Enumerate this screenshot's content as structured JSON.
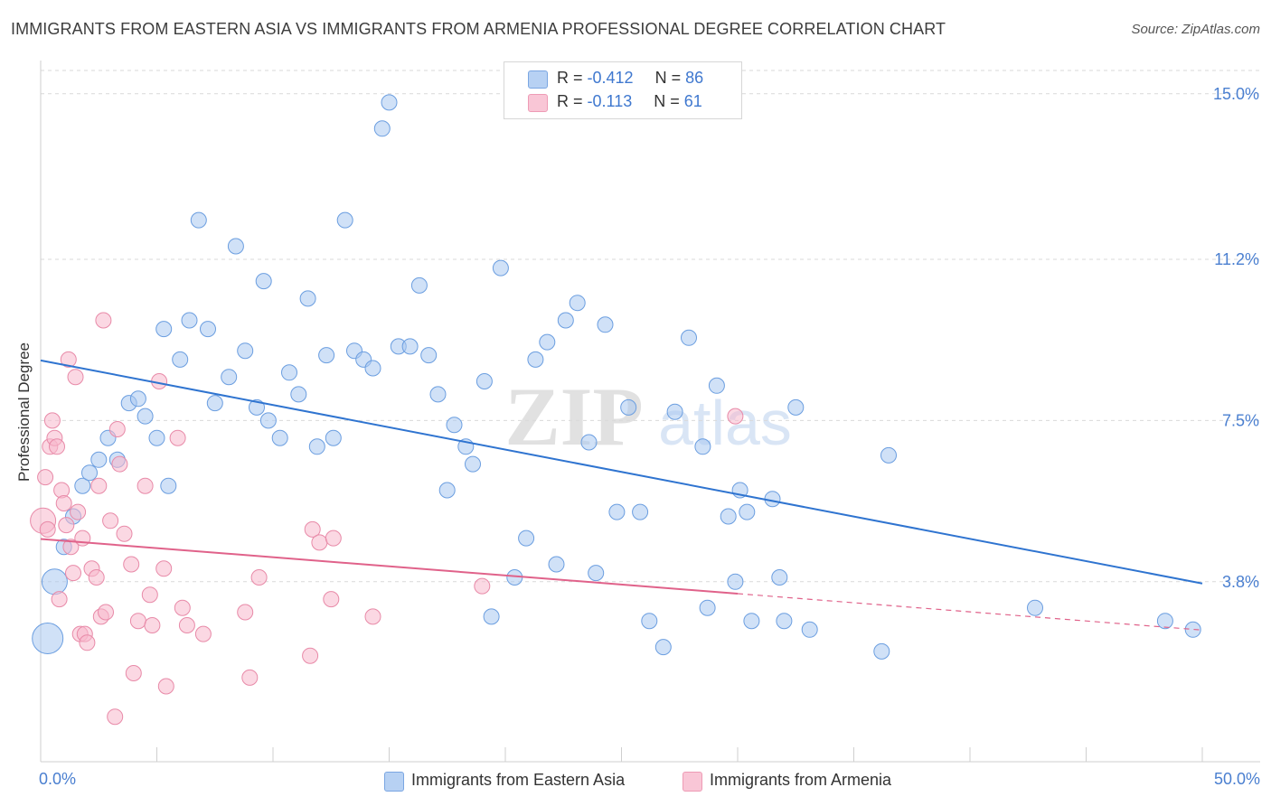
{
  "header": {
    "title": "IMMIGRANTS FROM EASTERN ASIA VS IMMIGRANTS FROM ARMENIA PROFESSIONAL DEGREE CORRELATION CHART",
    "source": "Source: ZipAtlas.com"
  },
  "colors": {
    "blue_fill": "#a9c8f0",
    "blue_stroke": "#6b9ee0",
    "blue_line": "#2f74d0",
    "pink_fill": "#f7b8cc",
    "pink_stroke": "#e88aa8",
    "pink_line": "#e0628a",
    "tick_label": "#4a7fd0",
    "grid": "#d9d9d9"
  },
  "legend_top": {
    "rows": [
      {
        "r_label": "R = ",
        "r_value": "-0.412",
        "n_label": "N = ",
        "n_value": "86"
      },
      {
        "r_label": "R = ",
        "r_value": "-0.113",
        "n_label": "N = ",
        "n_value": "61"
      }
    ]
  },
  "watermark": {
    "bold": "ZIP",
    "light": "atlas"
  },
  "chart_data": {
    "type": "scatter",
    "title": "IMMIGRANTS FROM EASTERN ASIA VS IMMIGRANTS FROM ARMENIA PROFESSIONAL DEGREE CORRELATION CHART",
    "ylabel": "Professional Degree",
    "xlabel": "",
    "xlim": [
      0,
      50
    ],
    "ylim": [
      0,
      15.7
    ],
    "x_tick_labels": [
      "0.0%",
      "50.0%"
    ],
    "y_ticks": [
      3.8,
      7.5,
      11.2,
      15.0
    ],
    "y_tick_labels": [
      "3.8%",
      "7.5%",
      "11.2%",
      "15.0%"
    ],
    "grid": "horizontal dashed",
    "legend_position": "bottom-center",
    "series": [
      {
        "name": "Immigrants from Eastern Asia",
        "color": "#a9c8f0",
        "r": -0.412,
        "n": 86,
        "trend": {
          "x": [
            0,
            50
          ],
          "y": [
            8.88,
            3.76
          ],
          "dashed_from": null
        },
        "points": [
          [
            0.3,
            2.5,
            3
          ],
          [
            0.6,
            3.8,
            2
          ],
          [
            1.0,
            4.6,
            1
          ],
          [
            1.4,
            5.3,
            1
          ],
          [
            1.8,
            6.0,
            1
          ],
          [
            2.1,
            6.3,
            1
          ],
          [
            2.5,
            6.6,
            1
          ],
          [
            2.9,
            7.1,
            1
          ],
          [
            3.3,
            6.6,
            1
          ],
          [
            3.8,
            7.9,
            1
          ],
          [
            4.2,
            8.0,
            1
          ],
          [
            4.5,
            7.6,
            1
          ],
          [
            5.0,
            7.1,
            1
          ],
          [
            5.3,
            9.6,
            1
          ],
          [
            5.5,
            6.0,
            1
          ],
          [
            6.0,
            8.9,
            1
          ],
          [
            6.4,
            9.8,
            1
          ],
          [
            6.8,
            12.1,
            1
          ],
          [
            7.2,
            9.6,
            1
          ],
          [
            7.5,
            7.9,
            1
          ],
          [
            8.1,
            8.5,
            1
          ],
          [
            8.4,
            11.5,
            1
          ],
          [
            8.8,
            9.1,
            1
          ],
          [
            9.3,
            7.8,
            1
          ],
          [
            9.6,
            10.7,
            1
          ],
          [
            9.8,
            7.5,
            1
          ],
          [
            10.3,
            7.1,
            1
          ],
          [
            10.7,
            8.6,
            1
          ],
          [
            11.1,
            8.1,
            1
          ],
          [
            11.5,
            10.3,
            1
          ],
          [
            11.9,
            6.9,
            1
          ],
          [
            12.3,
            9.0,
            1
          ],
          [
            12.6,
            7.1,
            1
          ],
          [
            13.1,
            12.1,
            1
          ],
          [
            13.5,
            9.1,
            1
          ],
          [
            13.9,
            8.9,
            1
          ],
          [
            14.3,
            8.7,
            1
          ],
          [
            14.7,
            14.2,
            1
          ],
          [
            15.0,
            14.8,
            1
          ],
          [
            15.4,
            9.2,
            1
          ],
          [
            15.9,
            9.2,
            1
          ],
          [
            16.3,
            10.6,
            1
          ],
          [
            16.7,
            9.0,
            1
          ],
          [
            17.1,
            8.1,
            1
          ],
          [
            17.5,
            5.9,
            1
          ],
          [
            17.8,
            7.4,
            1
          ],
          [
            18.3,
            6.9,
            1
          ],
          [
            18.6,
            6.5,
            1
          ],
          [
            19.1,
            8.4,
            1
          ],
          [
            19.4,
            3.0,
            1
          ],
          [
            19.8,
            11.0,
            1
          ],
          [
            20.4,
            3.9,
            1
          ],
          [
            20.9,
            4.8,
            1
          ],
          [
            21.3,
            8.9,
            1
          ],
          [
            21.8,
            9.3,
            1
          ],
          [
            22.2,
            4.2,
            1
          ],
          [
            22.6,
            9.8,
            1
          ],
          [
            23.1,
            10.2,
            1
          ],
          [
            23.6,
            7.0,
            1
          ],
          [
            23.9,
            4.0,
            1
          ],
          [
            24.3,
            9.7,
            1
          ],
          [
            24.8,
            5.4,
            1
          ],
          [
            25.3,
            7.8,
            1
          ],
          [
            25.8,
            5.4,
            1
          ],
          [
            26.2,
            2.9,
            1
          ],
          [
            26.8,
            2.3,
            1
          ],
          [
            27.3,
            7.7,
            1
          ],
          [
            27.9,
            9.4,
            1
          ],
          [
            28.5,
            6.9,
            1
          ],
          [
            28.7,
            3.2,
            1
          ],
          [
            29.1,
            8.3,
            1
          ],
          [
            29.6,
            5.3,
            1
          ],
          [
            29.9,
            3.8,
            1
          ],
          [
            30.1,
            5.9,
            1
          ],
          [
            30.4,
            5.4,
            1
          ],
          [
            30.6,
            2.9,
            1
          ],
          [
            31.5,
            5.7,
            1
          ],
          [
            31.8,
            3.9,
            1
          ],
          [
            32.0,
            2.9,
            1
          ],
          [
            32.5,
            7.8,
            1
          ],
          [
            33.1,
            2.7,
            1
          ],
          [
            36.2,
            2.2,
            1
          ],
          [
            36.5,
            6.7,
            1
          ],
          [
            42.8,
            3.2,
            1
          ],
          [
            48.4,
            2.9,
            1
          ],
          [
            49.6,
            2.7,
            1
          ]
        ]
      },
      {
        "name": "Immigrants from Armenia",
        "color": "#f7b8cc",
        "r": -0.113,
        "n": 61,
        "trend": {
          "x": [
            0,
            50
          ],
          "y": [
            4.78,
            2.69
          ],
          "dashed_from": 30
        },
        "points": [
          [
            0.1,
            5.2,
            2
          ],
          [
            0.2,
            6.2,
            1
          ],
          [
            0.3,
            5.0,
            1
          ],
          [
            0.4,
            6.9,
            1
          ],
          [
            0.5,
            7.5,
            1
          ],
          [
            0.6,
            7.1,
            1
          ],
          [
            0.7,
            6.9,
            1
          ],
          [
            0.8,
            3.4,
            1
          ],
          [
            0.9,
            5.9,
            1
          ],
          [
            1.0,
            5.6,
            1
          ],
          [
            1.1,
            5.1,
            1
          ],
          [
            1.2,
            8.9,
            1
          ],
          [
            1.3,
            4.6,
            1
          ],
          [
            1.4,
            4.0,
            1
          ],
          [
            1.5,
            8.5,
            1
          ],
          [
            1.6,
            5.4,
            1
          ],
          [
            1.7,
            2.6,
            1
          ],
          [
            1.8,
            4.8,
            1
          ],
          [
            1.9,
            2.6,
            1
          ],
          [
            2.0,
            2.4,
            1
          ],
          [
            2.2,
            4.1,
            1
          ],
          [
            2.4,
            3.9,
            1
          ],
          [
            2.5,
            6.0,
            1
          ],
          [
            2.6,
            3.0,
            1
          ],
          [
            2.7,
            9.8,
            1
          ],
          [
            2.8,
            3.1,
            1
          ],
          [
            3.0,
            5.2,
            1
          ],
          [
            3.2,
            0.7,
            1
          ],
          [
            3.3,
            7.3,
            1
          ],
          [
            3.4,
            6.5,
            1
          ],
          [
            3.6,
            4.9,
            1
          ],
          [
            3.9,
            4.2,
            1
          ],
          [
            4.0,
            1.7,
            1
          ],
          [
            4.2,
            2.9,
            1
          ],
          [
            4.5,
            6.0,
            1
          ],
          [
            4.7,
            3.5,
            1
          ],
          [
            4.8,
            2.8,
            1
          ],
          [
            5.1,
            8.4,
            1
          ],
          [
            5.3,
            4.1,
            1
          ],
          [
            5.4,
            1.4,
            1
          ],
          [
            5.9,
            7.1,
            1
          ],
          [
            6.1,
            3.2,
            1
          ],
          [
            6.3,
            2.8,
            1
          ],
          [
            7.0,
            2.6,
            1
          ],
          [
            8.8,
            3.1,
            1
          ],
          [
            9.0,
            1.6,
            1
          ],
          [
            9.4,
            3.9,
            1
          ],
          [
            11.6,
            2.1,
            1
          ],
          [
            11.7,
            5.0,
            1
          ],
          [
            12.0,
            4.7,
            1
          ],
          [
            12.5,
            3.4,
            1
          ],
          [
            12.6,
            4.8,
            1
          ],
          [
            14.3,
            3.0,
            1
          ],
          [
            19.0,
            3.7,
            1
          ],
          [
            29.9,
            7.6,
            1
          ]
        ]
      }
    ]
  },
  "legend_bottom": {
    "items": [
      {
        "label": "Immigrants from Eastern Asia"
      },
      {
        "label": "Immigrants from Armenia"
      }
    ]
  }
}
